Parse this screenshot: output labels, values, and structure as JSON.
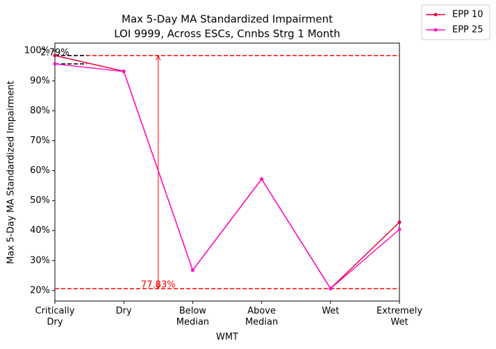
{
  "chart_data": {
    "type": "line",
    "title": "Max 5-Day MA Standardized Impairment",
    "subtitle": "LOI 9999, Across ESCs, Cnnbs Strg 1 Month",
    "x_label": "WMT",
    "y_label": "Max 5-Day MA Standardized Impairment",
    "categories": [
      "Critically Dry",
      "Dry",
      "Below Median",
      "Above Median",
      "Wet",
      "Extremely Wet"
    ],
    "series": [
      {
        "name": "EPP 10",
        "color": "#e8053d",
        "values": [
          98.45,
          93.2,
          26.8,
          57.2,
          20.7,
          42.8
        ]
      },
      {
        "name": "EPP 25",
        "color": "#ff14c8",
        "values": [
          95.66,
          93.1,
          26.8,
          57.2,
          20.62,
          40.4
        ]
      }
    ],
    "ylim": [
      16.5,
      102.6
    ],
    "yticks": [
      {
        "value": 20,
        "label": "20%"
      },
      {
        "value": 30,
        "label": "30%"
      },
      {
        "value": 40,
        "label": "40%"
      },
      {
        "value": 50,
        "label": "50%"
      },
      {
        "value": 60,
        "label": "60%"
      },
      {
        "value": 70,
        "label": "70%"
      },
      {
        "value": 80,
        "label": "80%"
      },
      {
        "value": 90,
        "label": "90%"
      },
      {
        "value": 100,
        "label": "100%"
      }
    ],
    "range_lines": {
      "max": 98.45,
      "min": 20.62,
      "color": "#ff0000",
      "label": "77.83%"
    },
    "gap": {
      "top": 98.45,
      "bottom": 95.66,
      "color": "#000000",
      "label": "2.79%"
    },
    "legend": "upper right outside"
  }
}
